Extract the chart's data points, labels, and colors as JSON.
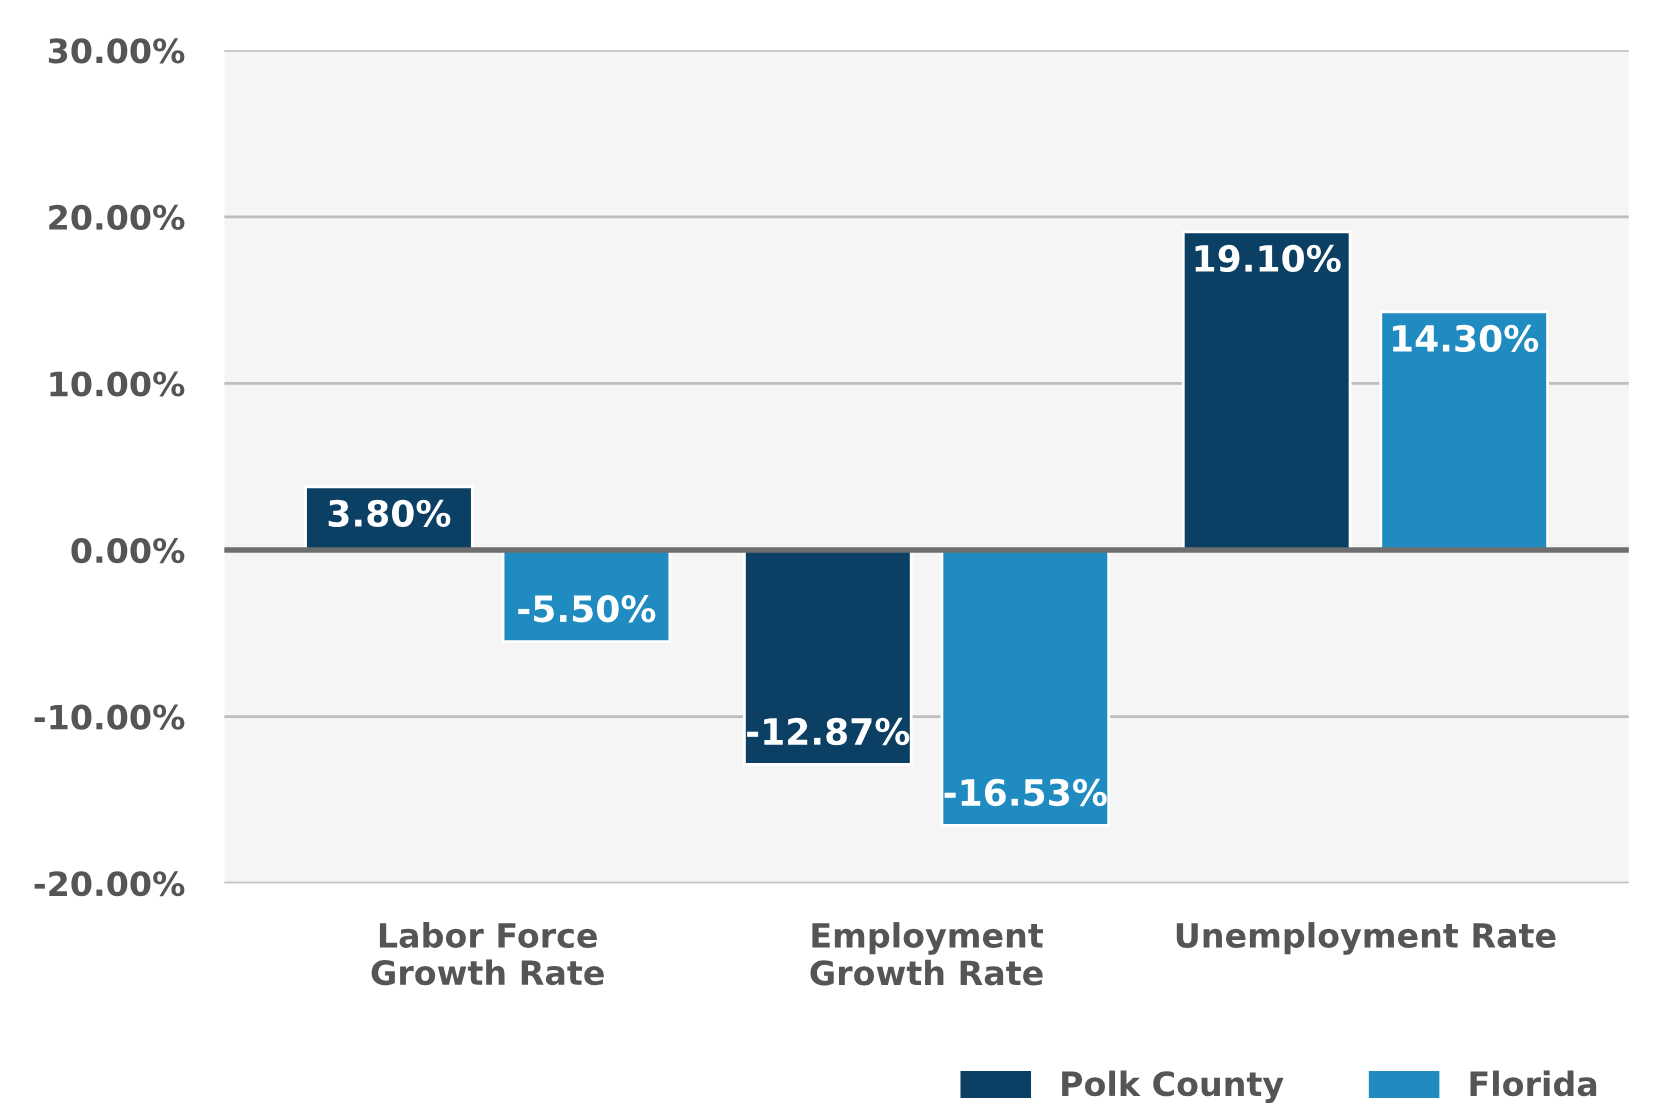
{
  "chart_data": {
    "type": "bar",
    "categories": [
      "Labor Force\nGrowth Rate",
      "Employment\nGrowth Rate",
      "Unemployment Rate"
    ],
    "series": [
      {
        "name": "Polk County",
        "color": "#0b3f63",
        "values": [
          3.8,
          -12.87,
          19.1
        ],
        "value_labels": [
          "3.80%",
          "-12.87%",
          "19.10%"
        ]
      },
      {
        "name": "Florida",
        "color": "#1f8bc0",
        "values": [
          -5.5,
          -16.53,
          14.3
        ],
        "value_labels": [
          "-5.50%",
          "-16.53%",
          "14.30%"
        ]
      }
    ],
    "ylim": [
      -20,
      30
    ],
    "yticks": [
      {
        "value": -20,
        "label": "-20.00%"
      },
      {
        "value": -10,
        "label": "-10.00%"
      },
      {
        "value": 0,
        "label": "0.00%"
      },
      {
        "value": 10,
        "label": "10.00%"
      },
      {
        "value": 20,
        "label": "20.00%"
      },
      {
        "value": 30,
        "label": "30.00%"
      }
    ],
    "ref_lines": [
      {
        "axis": "y",
        "value": 0,
        "color": "#6e6e6e"
      }
    ],
    "grid": "y",
    "legend": "bottom right"
  }
}
